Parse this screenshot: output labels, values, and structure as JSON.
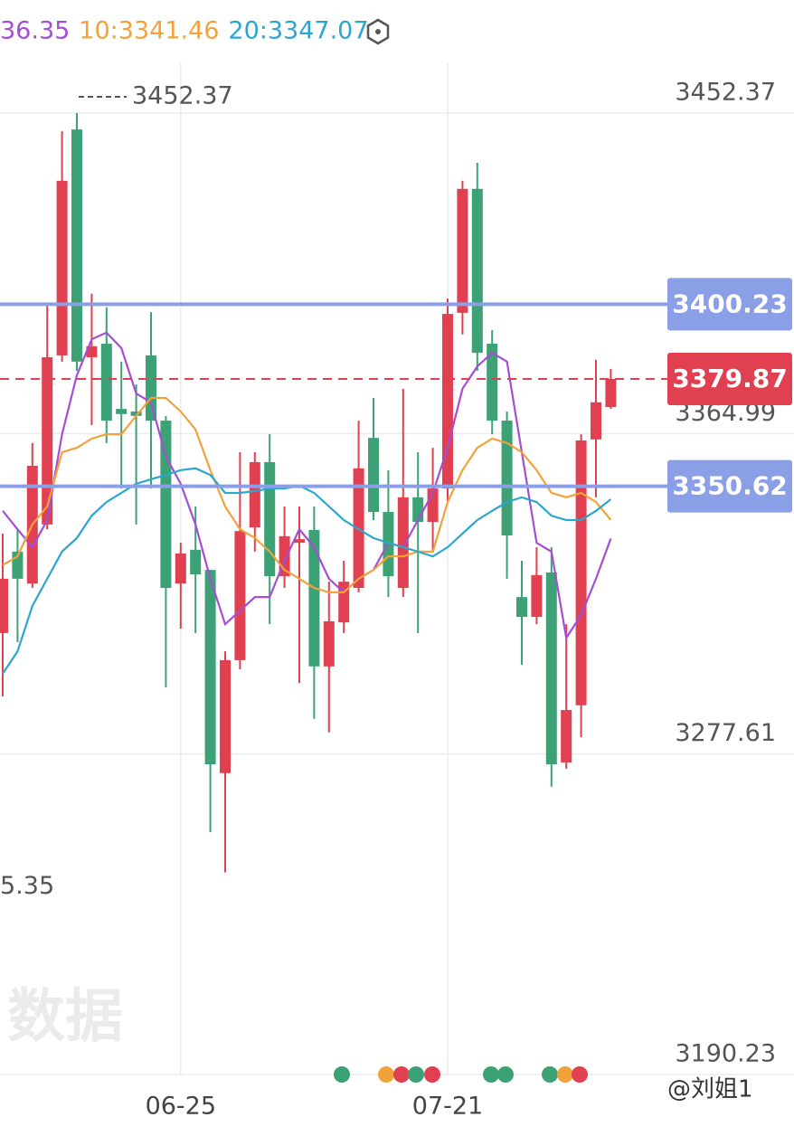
{
  "chart_data": {
    "type": "candlestick",
    "categories": [
      null,
      null,
      null,
      null,
      null,
      null,
      null,
      null,
      null,
      null,
      null,
      null,
      "06-25",
      null,
      null,
      null,
      null,
      null,
      null,
      null,
      null,
      null,
      null,
      null,
      null,
      null,
      null,
      null,
      null,
      null,
      "07-21",
      null,
      null,
      null,
      null,
      null,
      null,
      null,
      null,
      null,
      null,
      null
    ],
    "open": [
      3310.6,
      3332.8,
      3324.1,
      3340.2,
      3386.3,
      3447.9,
      3385.8,
      3389.5,
      3371.7,
      3371.0,
      3386.3,
      3368.5,
      3324.1,
      3333.3,
      3327.8,
      3272.4,
      3303.2,
      3339.4,
      3357.2,
      3326.1,
      3335.2,
      3338.7,
      3301.5,
      3313.5,
      3322.9,
      3363.8,
      3343.6,
      3322.9,
      3347.6,
      3340.9,
      3350.0,
      3397.9,
      3431.7,
      3389.5,
      3368.5,
      3320.4,
      3315.0,
      3327.1,
      3275.3,
      3290.9,
      3363.4,
      3372.2
    ],
    "high": [
      3337.7,
      3338.9,
      3362.4,
      3400.6,
      3447.4,
      3452.37,
      3403.1,
      3399.4,
      3384.6,
      3378.4,
      3398.1,
      3369.8,
      3335.2,
      3345.1,
      3327.8,
      3305.6,
      3359.9,
      3359.9,
      3364.8,
      3345.1,
      3345.1,
      3345.1,
      3324.6,
      3330.3,
      3368.5,
      3374.7,
      3355.0,
      3377.2,
      3359.9,
      3361.1,
      3401.8,
      3433.9,
      3438.8,
      3393.2,
      3371.0,
      3330.3,
      3334.0,
      3334.0,
      3313.0,
      3364.8,
      3385.1,
      3382.6
    ],
    "low": [
      3293.3,
      3308.1,
      3322.9,
      3338.9,
      3384.6,
      3382.1,
      3367.3,
      3362.4,
      3350.0,
      3340.2,
      3350.0,
      3295.8,
      3311.8,
      3310.6,
      3256.3,
      3245.35,
      3300.7,
      3332.8,
      3313.0,
      3322.9,
      3297.0,
      3287.2,
      3283.5,
      3310.6,
      3321.7,
      3341.4,
      3320.4,
      3320.4,
      3310.6,
      3332.8,
      3346.3,
      3392.0,
      3382.1,
      3364.8,
      3325.4,
      3301.9,
      3313.0,
      3268.7,
      3273.6,
      3282.2,
      3347.6,
      3371.7
    ],
    "close": [
      3325.4,
      3325.4,
      3356.2,
      3385.8,
      3433.9,
      3384.6,
      3388.8,
      3368.5,
      3370.3,
      3369.8,
      3368.5,
      3322.9,
      3332.3,
      3326.6,
      3274.8,
      3303.2,
      3338.4,
      3357.2,
      3326.1,
      3337.0,
      3336.2,
      3301.5,
      3313.8,
      3324.6,
      3355.5,
      3343.6,
      3326.1,
      3347.6,
      3340.9,
      3350.0,
      3397.6,
      3431.7,
      3387.0,
      3368.5,
      3337.2,
      3315.0,
      3326.4,
      3274.8,
      3289.6,
      3363.1,
      3373.5,
      3379.87
    ],
    "up_color": "#e0404f",
    "down_color": "#3ca276",
    "ma_lines": [
      {
        "name": "36.35",
        "color": "#a64dd6",
        "values": [
          3343.9,
          3338.9,
          3334.0,
          3341.4,
          3364.8,
          3380.9,
          3390.7,
          3392.5,
          3388.3,
          3375.9,
          3373.5,
          3358.7,
          3351.3,
          3340.2,
          3325.4,
          3313.0,
          3316.7,
          3320.4,
          3320.4,
          3330.3,
          3338.9,
          3334.0,
          3325.4,
          3321.7,
          3325.4,
          3327.8,
          3335.2,
          3334.0,
          3341.4,
          3348.8,
          3361.1,
          3377.2,
          3383.3,
          3387.0,
          3384.6,
          3359.9,
          3335.2,
          3332.8,
          3309.3,
          3315.5,
          3325.4,
          3336.35
        ]
      },
      {
        "name": "10:3341.46",
        "color": "#f2a23a",
        "values": [
          3329.1,
          3331.5,
          3340.2,
          3345.1,
          3359.9,
          3361.1,
          3363.6,
          3364.8,
          3364.8,
          3369.8,
          3374.7,
          3374.7,
          3371.0,
          3366.1,
          3355.0,
          3345.1,
          3338.9,
          3336.5,
          3332.8,
          3327.8,
          3325.4,
          3322.9,
          3321.7,
          3321.7,
          3325.4,
          3327.8,
          3331.5,
          3331.5,
          3332.8,
          3332.8,
          3346.3,
          3355.0,
          3361.1,
          3363.6,
          3362.4,
          3359.9,
          3355.0,
          3348.8,
          3347.6,
          3348.8,
          3346.3,
          3341.46
        ]
      },
      {
        "name": "20:3347.07",
        "color": "#2ba6cf",
        "values": [
          3299.5,
          3305.6,
          3318.0,
          3325.4,
          3332.8,
          3336.5,
          3342.6,
          3346.3,
          3348.8,
          3351.3,
          3352.5,
          3353.7,
          3355.0,
          3355.5,
          3353.7,
          3348.8,
          3348.8,
          3349.3,
          3350.0,
          3350.0,
          3350.8,
          3348.8,
          3345.1,
          3341.4,
          3338.9,
          3336.5,
          3335.2,
          3334.0,
          3332.8,
          3331.5,
          3334.0,
          3337.7,
          3341.4,
          3343.9,
          3346.3,
          3347.6,
          3346.3,
          3342.6,
          3341.4,
          3341.4,
          3343.9,
          3347.07
        ]
      }
    ],
    "levels": [
      3400.23,
      3350.62
    ],
    "level_color": "#8b9fe6",
    "ylim": [
      3190.23,
      3452.37
    ],
    "yticks": [
      3190.23,
      3277.61,
      3364.99,
      3452.37
    ],
    "grid": true,
    "min_label": "5.35",
    "watermark": "数据",
    "user_tag": "@刘姐1"
  }
}
